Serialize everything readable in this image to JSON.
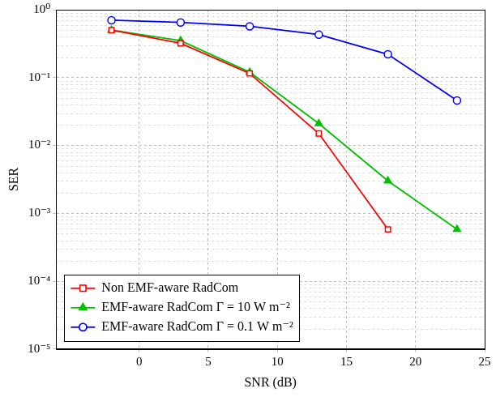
{
  "chart_data": {
    "type": "line",
    "x_label": "SNR (dB)",
    "y_label": "SER",
    "x": [
      -2,
      3,
      8,
      13,
      18,
      23
    ],
    "series": [
      {
        "name": "Non EMF-aware RadCom",
        "color": "#ff0000",
        "marker": "square",
        "values": [
          0.5,
          0.32,
          0.115,
          0.015,
          0.00058,
          null
        ]
      },
      {
        "name": "EMF-aware RadCom Γ = 10 W m⁻²",
        "color": "#00c000",
        "marker": "triangle",
        "values": [
          0.5,
          0.35,
          0.12,
          0.021,
          0.003,
          0.00058
        ]
      },
      {
        "name": "EMF-aware RadCom Γ = 0.1 W m⁻²",
        "color": "#0000ff",
        "marker": "circle",
        "values": [
          0.7,
          0.65,
          0.57,
          0.43,
          0.22,
          0.046
        ]
      }
    ],
    "xlim": [
      -6,
      25
    ],
    "xticks": [
      0,
      5,
      10,
      15,
      20,
      25
    ],
    "ylim": [
      1e-05,
      1
    ],
    "yticks": [
      {
        "value": 1e-05,
        "label": "10⁻⁵"
      },
      {
        "value": 0.0001,
        "label": "10⁻⁴"
      },
      {
        "value": 0.001,
        "label": "10⁻³"
      },
      {
        "value": 0.01,
        "label": "10⁻²"
      },
      {
        "value": 0.1,
        "label": "10⁻¹"
      },
      {
        "value": 1,
        "label": "10⁰"
      }
    ],
    "log": "y",
    "grid": true,
    "legend": "lower left"
  }
}
